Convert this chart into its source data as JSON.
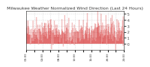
{
  "title": "Milwaukee Weather Normalized Wind Direction (Last 24 Hours)",
  "background_color": "#ffffff",
  "plot_bg_color": "#ffffff",
  "line_color": "#cc0000",
  "grid_color": "#cccccc",
  "yticks": [
    0,
    1,
    2,
    3,
    4,
    5
  ],
  "ylim": [
    -1,
    5.5
  ],
  "n_points": 288,
  "seed": 42,
  "base_level": 2.0,
  "noise_scale": 1.2,
  "title_fontsize": 4.5,
  "tick_fontsize": 3.5,
  "axis_color": "#333333"
}
